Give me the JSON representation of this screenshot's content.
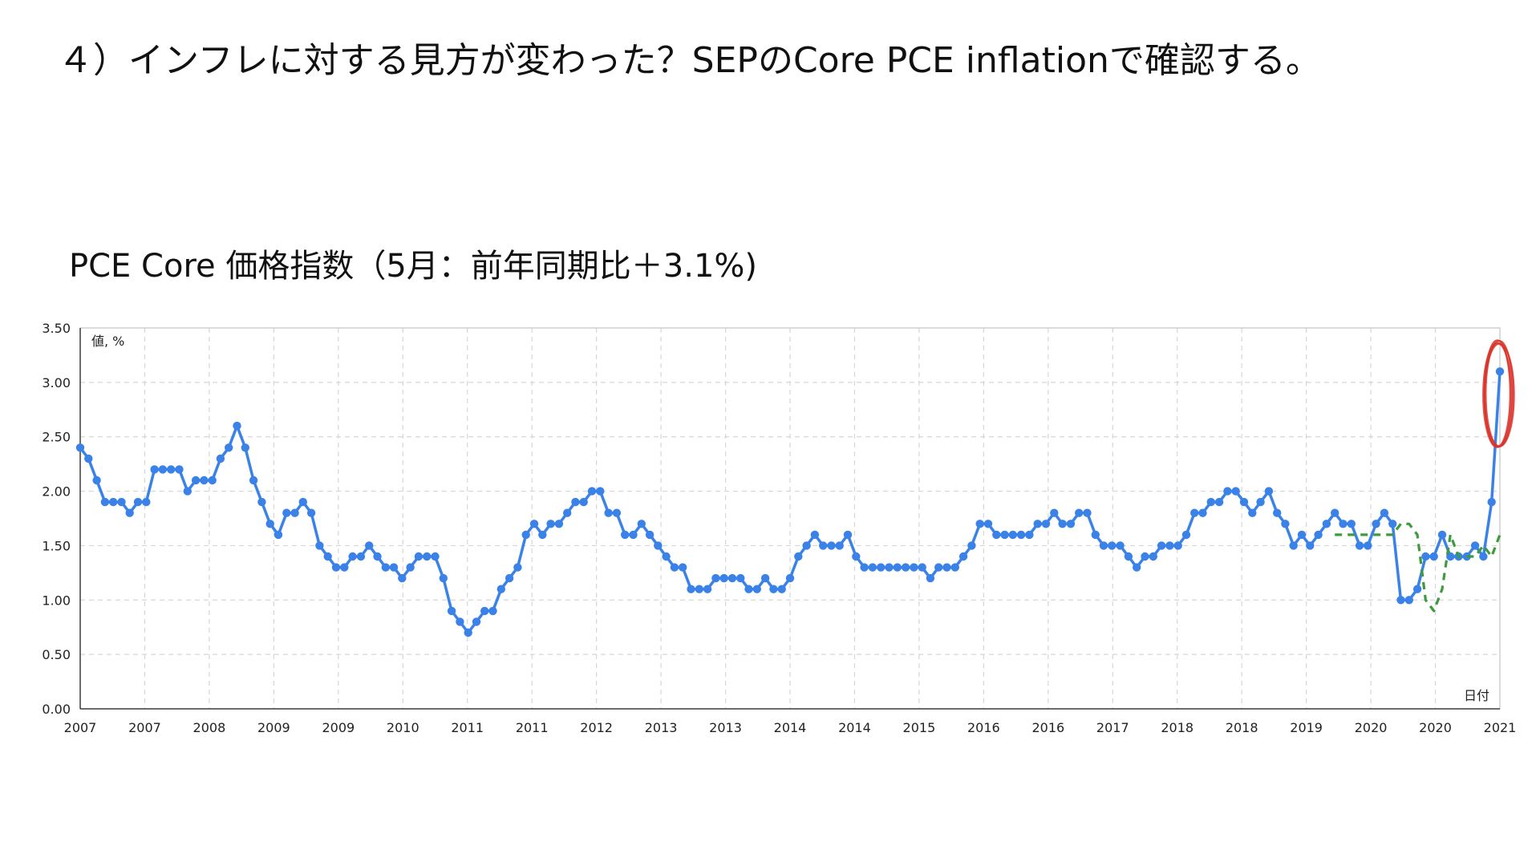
{
  "slide": {
    "title": "４）インフレに対する見方が変わった？SEPのCore PCE inflationで確認する。"
  },
  "chart_data": {
    "type": "line",
    "title": "PCE Core 価格指数（5月：前年同期比＋3.1%)",
    "ylabel": "値, %",
    "xlabel": "日付",
    "ylim": [
      0,
      3.5
    ],
    "yticks": [
      "0.00",
      "0.50",
      "1.00",
      "1.50",
      "2.00",
      "2.50",
      "3.00",
      "3.50"
    ],
    "xticks": [
      "2007",
      "2007",
      "2008",
      "2009",
      "2009",
      "2010",
      "2011",
      "2011",
      "2012",
      "2013",
      "2013",
      "2014",
      "2014",
      "2015",
      "2016",
      "2016",
      "2017",
      "2018",
      "2018",
      "2019",
      "2020",
      "2020",
      "2021"
    ],
    "grid": true,
    "series": [
      {
        "color": "#3b82e8",
        "style": "solid-with-markers",
        "values": [
          2.4,
          2.3,
          2.1,
          1.9,
          1.9,
          1.9,
          1.8,
          1.9,
          1.9,
          2.2,
          2.2,
          2.2,
          2.2,
          2.0,
          2.1,
          2.1,
          2.1,
          2.3,
          2.4,
          2.6,
          2.4,
          2.1,
          1.9,
          1.7,
          1.6,
          1.8,
          1.8,
          1.9,
          1.8,
          1.5,
          1.4,
          1.3,
          1.3,
          1.4,
          1.4,
          1.5,
          1.4,
          1.3,
          1.3,
          1.2,
          1.3,
          1.4,
          1.4,
          1.4,
          1.2,
          0.9,
          0.8,
          0.7,
          0.8,
          0.9,
          0.9,
          1.1,
          1.2,
          1.3,
          1.6,
          1.7,
          1.6,
          1.7,
          1.7,
          1.8,
          1.9,
          1.9,
          2.0,
          2.0,
          1.8,
          1.8,
          1.6,
          1.6,
          1.7,
          1.6,
          1.5,
          1.4,
          1.3,
          1.3,
          1.1,
          1.1,
          1.1,
          1.2,
          1.2,
          1.2,
          1.2,
          1.1,
          1.1,
          1.2,
          1.1,
          1.1,
          1.2,
          1.4,
          1.5,
          1.6,
          1.5,
          1.5,
          1.5,
          1.6,
          1.4,
          1.3,
          1.3,
          1.3,
          1.3,
          1.3,
          1.3,
          1.3,
          1.3,
          1.2,
          1.3,
          1.3,
          1.3,
          1.4,
          1.5,
          1.7,
          1.7,
          1.6,
          1.6,
          1.6,
          1.6,
          1.6,
          1.7,
          1.7,
          1.8,
          1.7,
          1.7,
          1.8,
          1.8,
          1.6,
          1.5,
          1.5,
          1.5,
          1.4,
          1.3,
          1.4,
          1.4,
          1.5,
          1.5,
          1.5,
          1.6,
          1.8,
          1.8,
          1.9,
          1.9,
          2.0,
          2.0,
          1.9,
          1.8,
          1.9,
          2.0,
          1.8,
          1.7,
          1.5,
          1.6,
          1.5,
          1.6,
          1.7,
          1.8,
          1.7,
          1.7,
          1.5,
          1.5,
          1.7,
          1.8,
          1.7,
          1.0,
          1.0,
          1.1,
          1.4,
          1.4,
          1.6,
          1.4,
          1.4,
          1.4,
          1.5,
          1.4,
          1.9,
          3.1
        ]
      },
      {
        "color": "#3e9a3e",
        "style": "dashed",
        "values": [
          1.6,
          1.6,
          1.6,
          1.6,
          1.6,
          1.6,
          1.6,
          1.6,
          1.7,
          1.7,
          1.6,
          1.0,
          0.9,
          1.1,
          1.6,
          1.4,
          1.4,
          1.4,
          1.5,
          1.4,
          1.6
        ]
      }
    ],
    "highlight_color": "#d9322a"
  }
}
